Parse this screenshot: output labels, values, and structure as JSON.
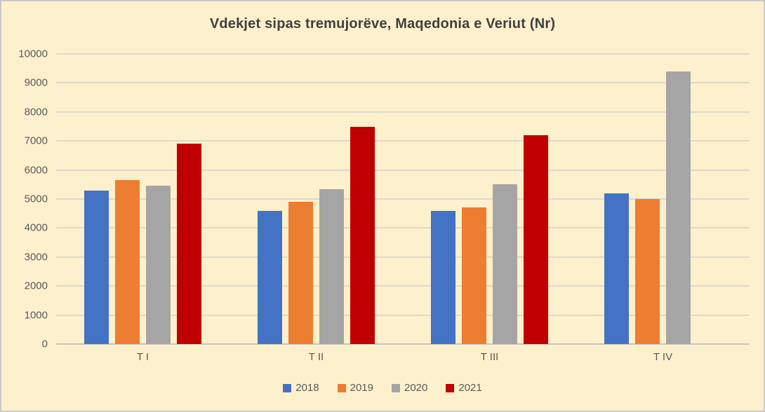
{
  "window": {
    "background_color": "#FDF1CD",
    "border_color": "#C9C9C9"
  },
  "chart_data": {
    "type": "bar",
    "title": "Vdekjet sipas tremujorëve, Maqedonia e Veriut (Nr)",
    "categories": [
      "T I",
      "T II",
      "T III",
      "T IV"
    ],
    "series": [
      {
        "name": "2018",
        "color": "#4472C4",
        "values": [
          5300,
          4600,
          4600,
          5200
        ]
      },
      {
        "name": "2019",
        "color": "#ED7D31",
        "values": [
          5650,
          4900,
          4700,
          5000
        ]
      },
      {
        "name": "2020",
        "color": "#A5A5A5",
        "values": [
          5450,
          5350,
          5500,
          9400
        ]
      },
      {
        "name": "2021",
        "color": "#C00000",
        "values": [
          6900,
          7500,
          7200,
          null
        ]
      }
    ],
    "xlabel": "",
    "ylabel": "",
    "ylim": [
      0,
      10000
    ],
    "yticks": [
      0,
      1000,
      2000,
      3000,
      4000,
      5000,
      6000,
      7000,
      8000,
      9000,
      10000
    ],
    "grid": true,
    "legend_position": "bottom"
  },
  "styles": {
    "title_color": "#3F3F3F",
    "axis_label_color": "#595959",
    "gridline_color": "#DCD8CB",
    "axis_line_color": "#C9C5B8"
  }
}
